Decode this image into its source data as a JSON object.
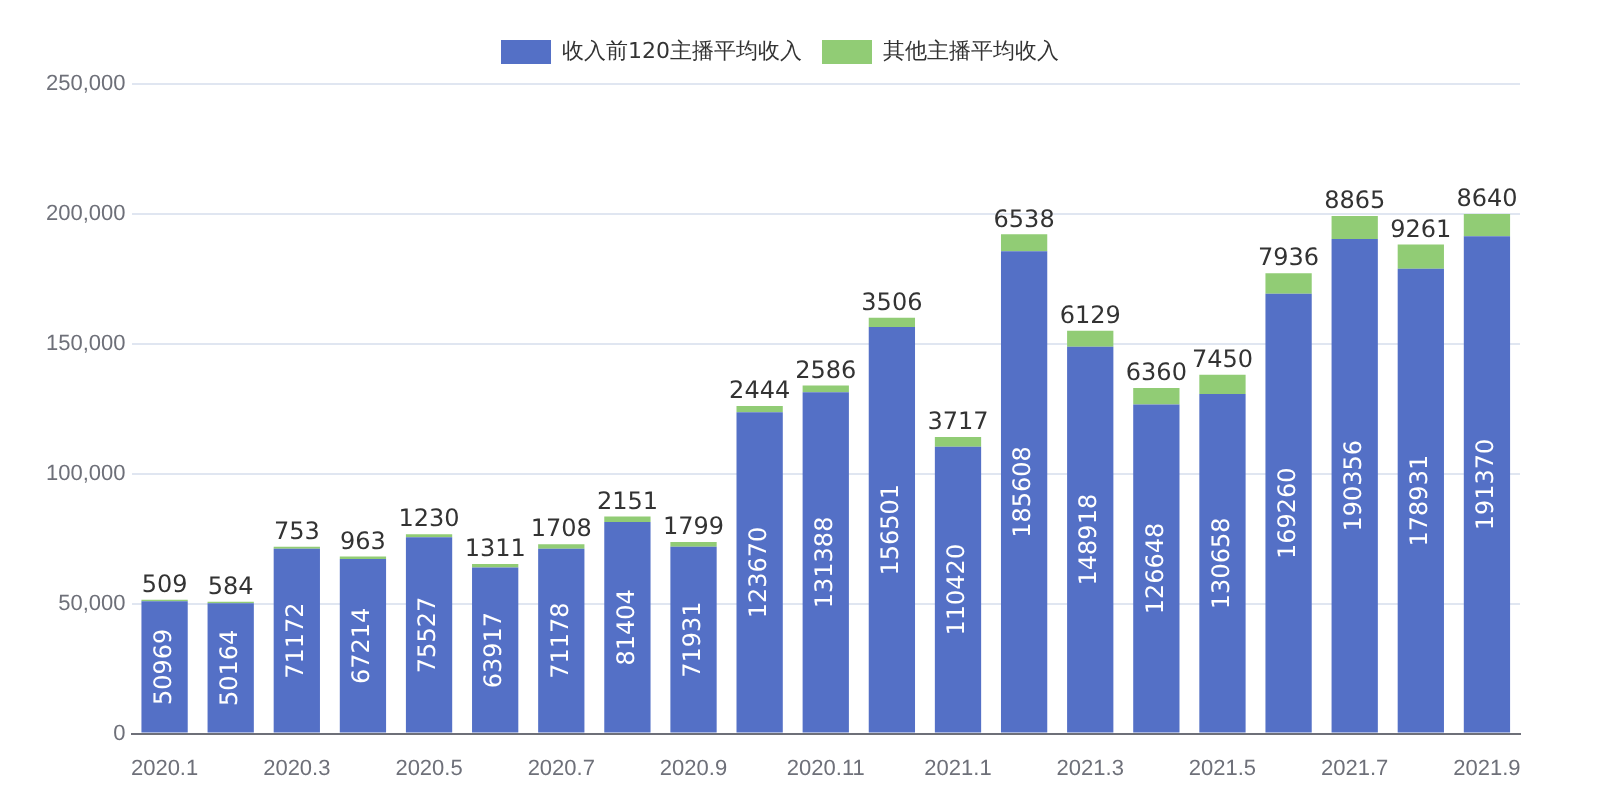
{
  "chart_data": {
    "type": "bar",
    "stacked": true,
    "data_labels": true,
    "legend": "top",
    "grid": "y",
    "categories": [
      "2020.1",
      null,
      "2020.3",
      null,
      "2020.5",
      null,
      "2020.7",
      null,
      "2020.9",
      null,
      "2020.11",
      null,
      "2021.1",
      null,
      "2021.3",
      null,
      "2021.5",
      null,
      "2021.7",
      null,
      "2021.9"
    ],
    "series": [
      {
        "name": "收入前120主播平均收入",
        "color": "#5470c6",
        "values": [
          50969,
          50164,
          71172,
          67214,
          75527,
          63917,
          71178,
          81404,
          71931,
          123670,
          131388,
          156501,
          110420,
          185608,
          148918,
          126648,
          130658,
          169260,
          190356,
          178931,
          191370
        ]
      },
      {
        "name": "其他主播平均收入",
        "color": "#91cc75",
        "values": [
          509,
          584,
          753,
          963,
          1230,
          1311,
          1708,
          2151,
          1799,
          2444,
          2586,
          3506,
          3717,
          6538,
          6129,
          6360,
          7450,
          7936,
          8865,
          9261,
          8640
        ]
      }
    ],
    "ylim": [
      0,
      250000
    ],
    "yticks": [
      0,
      {
        "value": 50000,
        "label": "50,000"
      },
      {
        "value": 100000,
        "label": "100,000"
      },
      {
        "value": 150000,
        "label": "150,000"
      },
      {
        "value": 200000,
        "label": "200,000"
      },
      {
        "value": 250000,
        "label": "250,000"
      }
    ]
  }
}
